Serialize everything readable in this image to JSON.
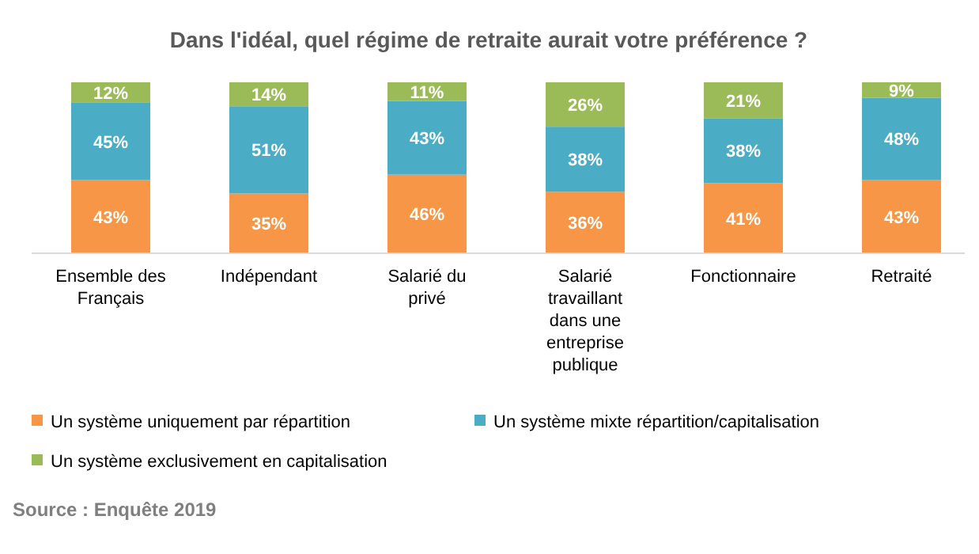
{
  "chart_data": {
    "type": "bar",
    "title": "Dans l'idéal, quel régime de retraite aurait votre préférence ?",
    "categories": [
      "Ensemble des Français",
      "Indépendant",
      "Salarié du privé",
      "Salarié travaillant dans une entreprise publique",
      "Fonctionnaire",
      "Retraité"
    ],
    "stacked": true,
    "legend": "bottom",
    "series": [
      {
        "name": "Un système uniquement par répartition",
        "color": "#f79646",
        "values": [
          43,
          35,
          46,
          36,
          41,
          43
        ],
        "value_labels": [
          "43%",
          "35%",
          "46%",
          "36%",
          "41%",
          "43%"
        ]
      },
      {
        "name": "Un système mixte répartition/capitalisation",
        "color": "#4bacc6",
        "values": [
          45,
          51,
          43,
          38,
          38,
          48
        ],
        "value_labels": [
          "45%",
          "51%",
          "43%",
          "38%",
          "38%",
          "48%"
        ]
      },
      {
        "name": "Un système exclusivement en capitalisation",
        "color": "#9bbb59",
        "values": [
          12,
          14,
          11,
          26,
          21,
          9
        ],
        "value_labels": [
          "12%",
          "14%",
          "11%",
          "26%",
          "21%",
          "9%"
        ]
      }
    ],
    "annotations": [
      "Source : Enquête 2019"
    ]
  }
}
